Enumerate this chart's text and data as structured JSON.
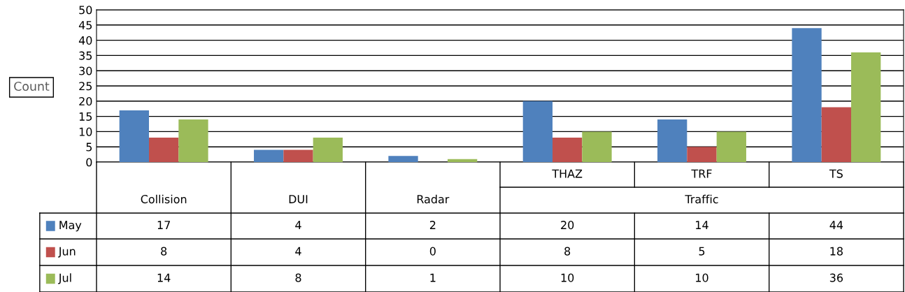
{
  "chart_data": {
    "type": "bar",
    "ylabel": "Count",
    "categories": [
      "Collision",
      "DUI",
      "Radar",
      "THAZ",
      "TRF",
      "TS"
    ],
    "series": [
      {
        "name": "May",
        "color": "#4f81bd",
        "values": [
          17,
          4,
          2,
          20,
          14,
          44
        ]
      },
      {
        "name": "Jun",
        "color": "#c0504d",
        "values": [
          8,
          4,
          0,
          8,
          5,
          18
        ]
      },
      {
        "name": "Jul",
        "color": "#9bbb59",
        "values": [
          14,
          8,
          1,
          10,
          10,
          36
        ]
      }
    ],
    "annotations": [
      "Traffic"
    ],
    "ylim": [
      0,
      50
    ],
    "yticks": [
      0,
      5,
      10,
      15,
      20,
      25,
      30,
      35,
      40,
      45,
      50
    ],
    "grid": "y",
    "legend": "bottom left",
    "data_labels": true
  }
}
